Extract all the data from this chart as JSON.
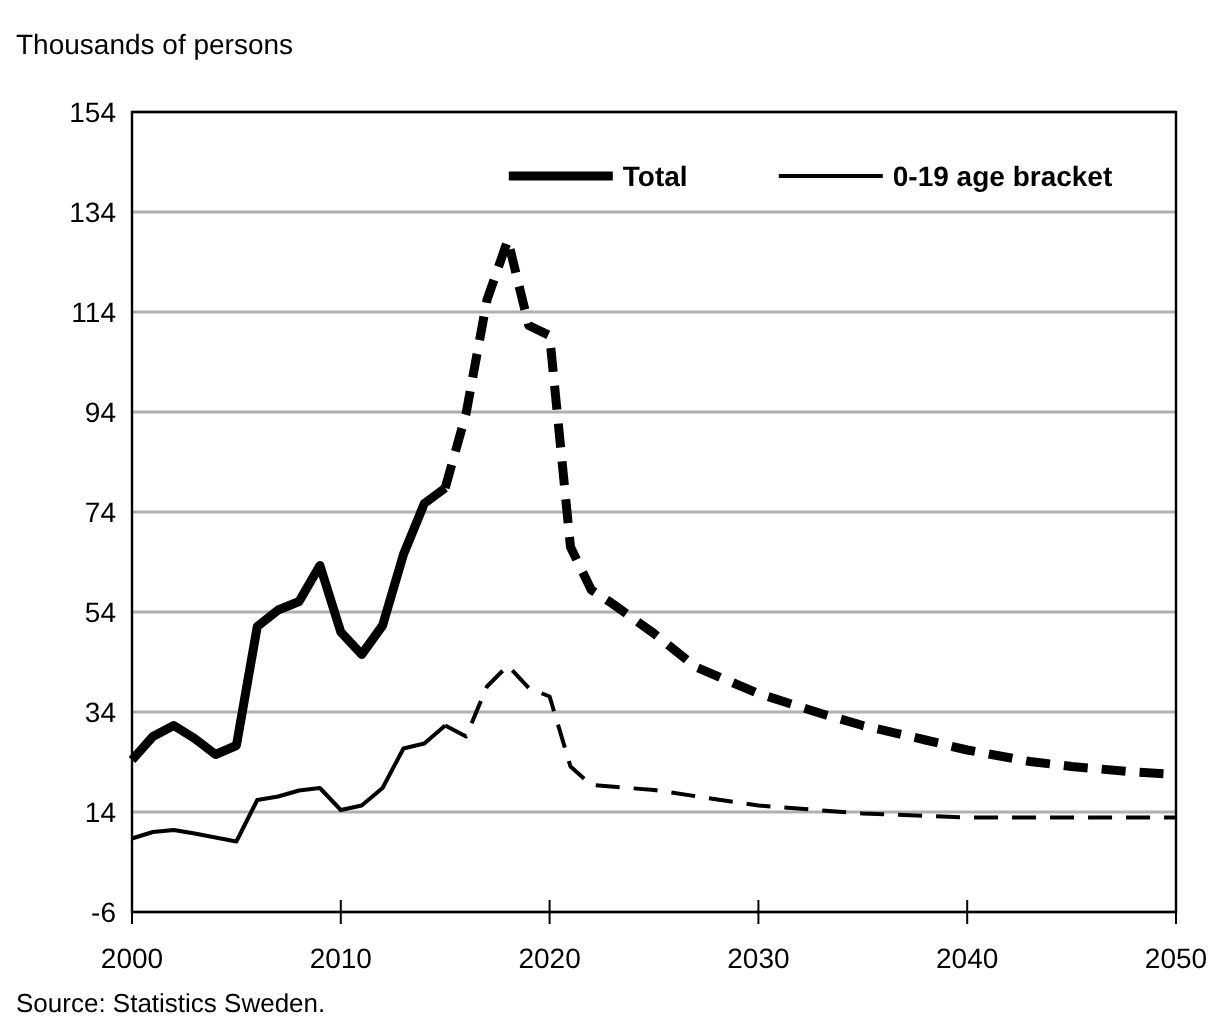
{
  "chart_data": {
    "type": "line",
    "ylabel": "Thousands of persons",
    "annotations": [
      "Source: Statistics Sweden."
    ],
    "xlim": [
      2000,
      2050
    ],
    "xticks": [
      2000,
      2010,
      2020,
      2030,
      2040,
      2050
    ],
    "ylim": [
      -6,
      154
    ],
    "yticks": [
      -6,
      14,
      34,
      54,
      74,
      94,
      114,
      134,
      154
    ],
    "grid": "y",
    "legend": "top right",
    "marker": "none",
    "series": [
      {
        "name": "Total",
        "color": "#000000",
        "line_style": "solid",
        "x": [
          2000,
          2001,
          2002,
          2003,
          2004,
          2005,
          2006,
          2007,
          2008,
          2009,
          2010,
          2011,
          2012,
          2013,
          2014,
          2015
        ],
        "values": [
          24.4,
          29.1,
          31.3,
          28.7,
          25.5,
          27.3,
          51.1,
          54.4,
          56.1,
          63.3,
          50,
          45.5,
          51.3,
          65.5,
          75.7,
          78.8
        ]
      },
      {
        "color": "#000000",
        "line_style": "dashed",
        "x": [
          2015,
          2016,
          2017,
          2018,
          2019,
          2020,
          2021,
          2022,
          2023,
          2024,
          2025,
          2027,
          2030,
          2033,
          2035,
          2038,
          2040,
          2043,
          2045,
          2048,
          2050
        ],
        "values": [
          78.8,
          93.7,
          116.4,
          128.4,
          111.3,
          109.3,
          67,
          58.4,
          55.7,
          52.7,
          49.7,
          43,
          37.7,
          33.7,
          31.3,
          28.4,
          26.4,
          24.1,
          23.1,
          22,
          21.5
        ]
      },
      {
        "name": "0-19 age bracket",
        "color": "#000000",
        "line_style": "solid",
        "x": [
          2000,
          2001,
          2002,
          2003,
          2004,
          2005,
          2006,
          2007,
          2008,
          2009,
          2010,
          2011,
          2012,
          2013,
          2014,
          2015
        ],
        "values": [
          8.7,
          10,
          10.4,
          9.7,
          8.9,
          8.1,
          16.4,
          17.1,
          18.3,
          18.8,
          14.4,
          15.3,
          18.8,
          26.7,
          27.7,
          31.3
        ]
      },
      {
        "color": "#000000",
        "line_style": "dashed",
        "x": [
          2015,
          2016,
          2017,
          2018,
          2019,
          2020,
          2021,
          2022,
          2025,
          2030,
          2035,
          2040,
          2045,
          2050
        ],
        "values": [
          31.3,
          29.1,
          39.1,
          43.3,
          38.8,
          37.1,
          23.1,
          19.4,
          18.4,
          15.3,
          13.7,
          12.9,
          12.9,
          12.9
        ]
      }
    ]
  }
}
